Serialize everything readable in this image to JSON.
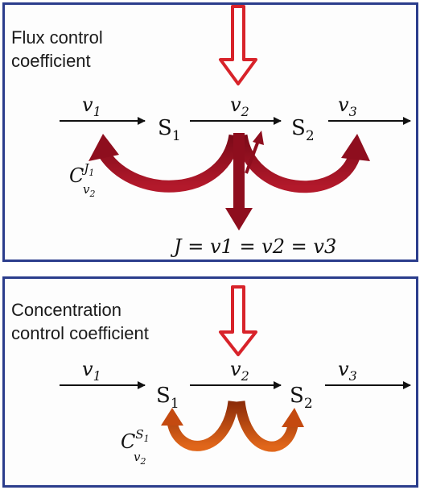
{
  "flux_panel": {
    "title": "Flux control\ncoefficient",
    "v1": "v",
    "v1_sub": "1",
    "v2": "v",
    "v2_sub": "2",
    "v3": "v",
    "v3_sub": "3",
    "S1": "S",
    "S1_sub": "1",
    "S2": "S",
    "S2_sub": "2",
    "coef_C": "C",
    "coef_sup": "J",
    "coef_sup_sub": "1",
    "coef_sub": "v",
    "coef_sub_sub": "2",
    "equation": "J = v1 = v2 = v3"
  },
  "concentration_panel": {
    "title": "Concentration\ncontrol coefficient",
    "v1": "v",
    "v1_sub": "1",
    "v2": "v",
    "v2_sub": "2",
    "v3": "v",
    "v3_sub": "3",
    "S1": "S",
    "S1_sub": "1",
    "S2": "S",
    "S2_sub": "2",
    "coef_C": "C",
    "coef_sup": "S",
    "coef_sup_sub": "1",
    "coef_sub": "v",
    "coef_sub_sub": "2"
  },
  "colors": {
    "border": "#2b3d8c",
    "flux_arrow": "#9b1020",
    "conc_arrow": "#c44a10",
    "perturb_arrow": "#d8232a"
  }
}
